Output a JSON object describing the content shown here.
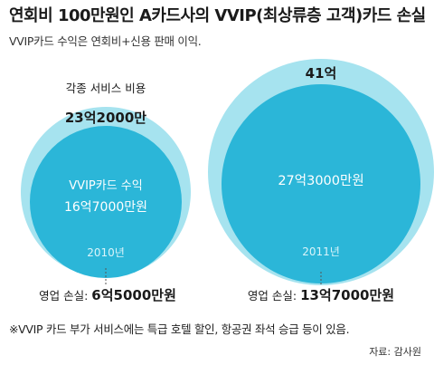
{
  "title": "연회비 100만원인 A카드사의 VVIP(최상류층 고객)카드 손실",
  "subtitle": "VVIP카드 수익은 연회비+신용 판매 이익.",
  "chart_data": {
    "type": "bubble",
    "units": "원",
    "unit_label": "억원",
    "series": [
      {
        "year": "2010년",
        "cost_label": "각종 서비스 비용",
        "cost_value_text": "23억2000만",
        "cost_value": 23.2,
        "revenue_label": "VVIP카드 수익",
        "revenue_value_text": "16억7000만원",
        "revenue_value": 16.7,
        "loss_label": "영업 손실:",
        "loss_value_text": "6억5000만원",
        "loss_value": 6.5
      },
      {
        "year": "2011년",
        "cost_label": "",
        "cost_value_text": "41억",
        "cost_value": 41,
        "revenue_label": "",
        "revenue_value_text": "27억3000만원",
        "revenue_value": 27.3,
        "loss_label": "영업 손실:",
        "loss_value_text": "13억7000만원",
        "loss_value": 13.7
      }
    ],
    "colors": {
      "outer": "#a6e3ef",
      "inner": "#2bb6d8",
      "inner_text": "#ffffff",
      "year_text": "#d9f4fa"
    }
  },
  "footnote": "※VVIP 카드 부가 서비스에는 특급 호텔 할인, 항공권 좌석 승급 등이 있음.",
  "source": "자료: 감사원"
}
